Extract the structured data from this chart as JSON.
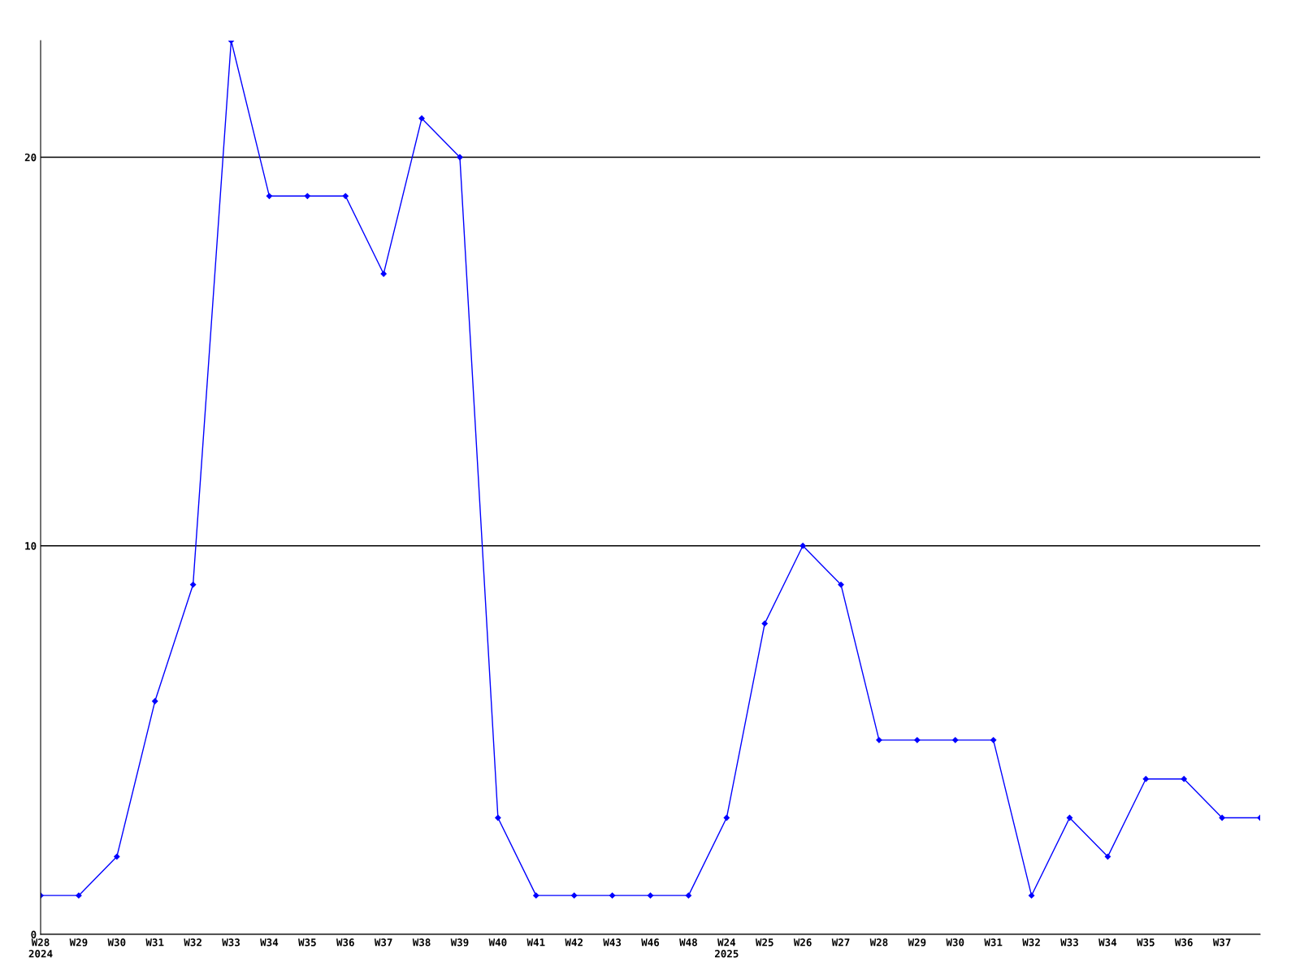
{
  "chart_data": {
    "type": "line",
    "categories": [
      "W28\n2024",
      "W29",
      "W30",
      "W31",
      "W32",
      "W33",
      "W34",
      "W35",
      "W36",
      "W37",
      "W38",
      "W39",
      "W40",
      "W41",
      "W42",
      "W43",
      "W46",
      "W48",
      "W24\n2025",
      "W25",
      "W26",
      "W27",
      "W28",
      "W29",
      "W30",
      "W31",
      "W32",
      "W33",
      "W34",
      "W35",
      "W36",
      "W37",
      null
    ],
    "series": [
      {
        "color": "#0000ff",
        "values": [
          1,
          1,
          2,
          6,
          9,
          23,
          19,
          19,
          19,
          17,
          21,
          20,
          3,
          1,
          1,
          1,
          1,
          1,
          3,
          8,
          10,
          9,
          5,
          5,
          5,
          5,
          1,
          3,
          2,
          4,
          4,
          3,
          3
        ]
      }
    ],
    "ylim": [
      0,
      23
    ],
    "yticks": [
      0,
      10,
      20
    ],
    "grid": "y",
    "marker": "diamond",
    "line_style": "solid"
  }
}
